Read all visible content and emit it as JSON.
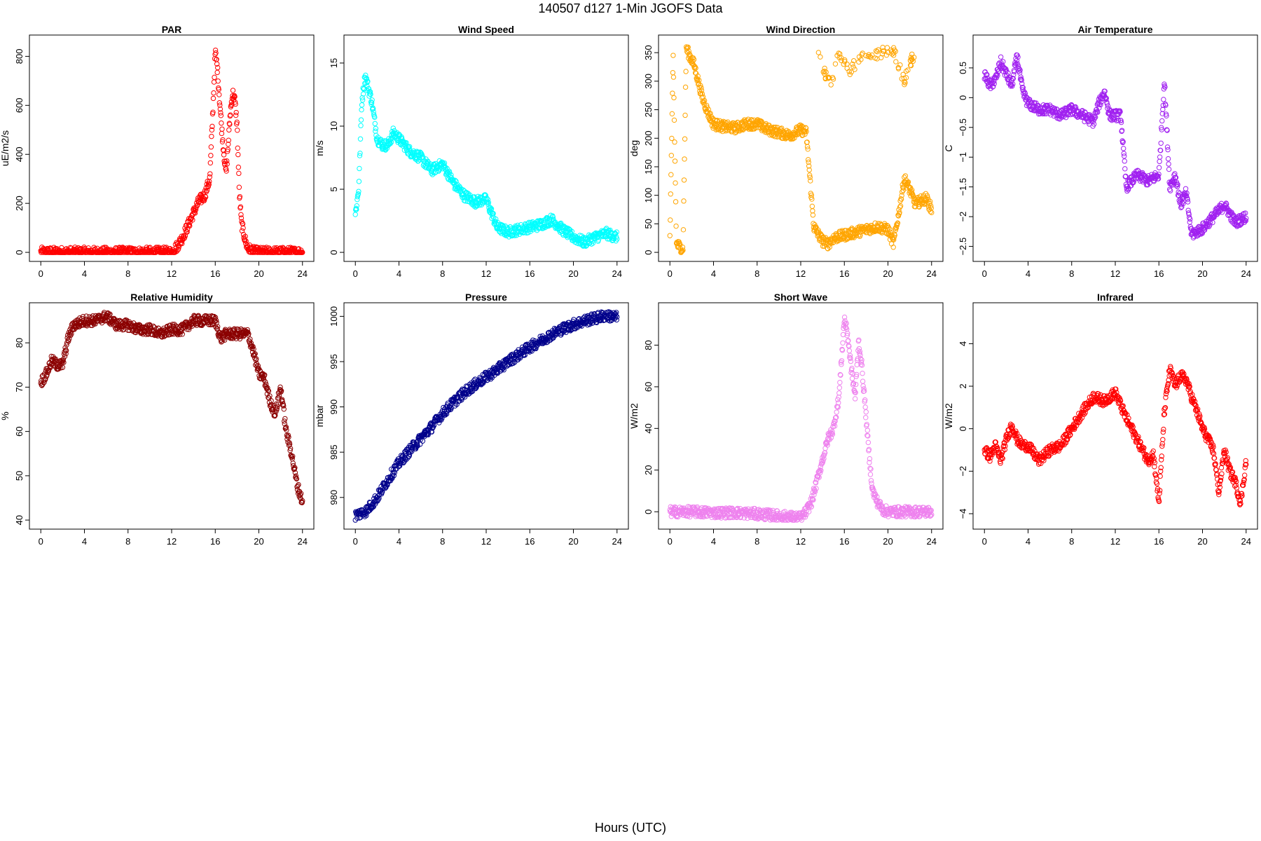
{
  "figure": {
    "title": "140507   d127   1-Min  JGOFS Data",
    "xlabel": "Hours (UTC)"
  },
  "chart_data": [
    {
      "type": "scatter",
      "title": "PAR",
      "ylabel": "uE/m2/s",
      "color": "#ff0000",
      "xlim": [
        0,
        24
      ],
      "ylim": [
        0,
        850
      ],
      "xticks": [
        0,
        4,
        8,
        12,
        16,
        20,
        24
      ],
      "yticks": [
        0,
        200,
        400,
        600,
        800
      ],
      "series": [
        {
          "x": [
            0,
            2,
            4,
            6,
            8,
            10,
            12,
            12.5,
            13,
            13.5,
            14,
            14.5,
            15,
            15.5,
            15.8,
            16,
            16.2,
            16.4,
            16.6,
            16.8,
            17,
            17.2,
            17.4,
            17.6,
            17.8,
            18,
            18.2,
            18.4,
            18.6,
            18.8,
            19,
            19.5,
            20,
            21,
            22,
            23,
            24
          ],
          "y": [
            0,
            0,
            0,
            0,
            0,
            0,
            0,
            25,
            60,
            110,
            160,
            210,
            230,
            300,
            600,
            820,
            750,
            620,
            500,
            400,
            320,
            450,
            580,
            650,
            620,
            520,
            250,
            120,
            80,
            40,
            15,
            3,
            0,
            0,
            0,
            0,
            0
          ]
        }
      ]
    },
    {
      "type": "scatter",
      "title": "Wind Speed",
      "ylabel": "m/s",
      "color": "#00ffff",
      "xlim": [
        0,
        24
      ],
      "ylim": [
        0,
        16.5
      ],
      "xticks": [
        0,
        4,
        8,
        12,
        16,
        20,
        24
      ],
      "yticks": [
        0,
        5,
        10,
        15
      ],
      "series": [
        {
          "x": [
            0,
            0.3,
            0.6,
            0.9,
            1.2,
            1.5,
            2,
            2.5,
            3,
            3.5,
            4,
            5,
            6,
            7,
            8,
            9,
            10,
            11,
            12,
            13,
            14,
            15,
            16,
            17,
            18,
            19,
            20,
            21,
            22,
            23,
            24
          ],
          "y": [
            3,
            5,
            12,
            14,
            13,
            12,
            9,
            8.5,
            8.5,
            9.5,
            9,
            8,
            7.5,
            6.5,
            7,
            5.5,
            4.5,
            4,
            4.2,
            2,
            1.6,
            1.8,
            2,
            2.2,
            2.6,
            1.8,
            1.2,
            0.8,
            1.2,
            1.5,
            1.2
          ]
        }
      ]
    },
    {
      "type": "scatter",
      "title": "Wind Direction",
      "ylabel": "deg",
      "color": "#ffa500",
      "xlim": [
        0,
        24
      ],
      "ylim": [
        0,
        365
      ],
      "xticks": [
        0,
        4,
        8,
        12,
        16,
        20,
        24
      ],
      "yticks": [
        0,
        50,
        100,
        150,
        200,
        250,
        300,
        350
      ],
      "series": [
        {
          "x": [
            0,
            0.3,
            0.6,
            0.9,
            1.2,
            1.5,
            1.8,
            2.2,
            2.6,
            3,
            3.5,
            4,
            5,
            6,
            7,
            8,
            9,
            10,
            11,
            12,
            12.5,
            13.2,
            13.5,
            14,
            14.5,
            15,
            16,
            17,
            18,
            19,
            20,
            20.5,
            21,
            21.5,
            22,
            22.5,
            23,
            23.5,
            24
          ],
          "y": [
            30,
            340,
            15,
            10,
            5,
            358,
            345,
            330,
            300,
            270,
            245,
            225,
            220,
            218,
            225,
            225,
            215,
            210,
            205,
            215,
            210,
            45,
            35,
            20,
            15,
            25,
            30,
            35,
            40,
            45,
            40,
            15,
            70,
            130,
            110,
            85,
            90,
            95,
            75
          ]
        },
        {
          "x": [
            13.5,
            14,
            14.3,
            14.8,
            15.5,
            16.5,
            17.5,
            20.5,
            21.5,
            22.5
          ],
          "y": [
            350,
            330,
            310,
            290,
            350,
            320,
            340,
            355,
            300,
            355
          ]
        }
      ]
    },
    {
      "type": "scatter",
      "title": "Air Temperature",
      "ylabel": "C",
      "color": "#a020f0",
      "xlim": [
        0,
        24
      ],
      "ylim": [
        -2.6,
        0.9
      ],
      "xticks": [
        0,
        4,
        8,
        12,
        16,
        20,
        24
      ],
      "yticks": [
        -2.5,
        -2.0,
        -1.5,
        -1.0,
        -0.5,
        0.0,
        0.5
      ],
      "series": [
        {
          "x": [
            0,
            0.5,
            1,
            1.5,
            2,
            2.5,
            3,
            3.5,
            4,
            5,
            6,
            7,
            8,
            9,
            10,
            10.5,
            11,
            11.5,
            12,
            12.5,
            13,
            13.5,
            14,
            15,
            16,
            16.5,
            17,
            17.5,
            18,
            18.5,
            19,
            20,
            21,
            22,
            23,
            24
          ],
          "y": [
            0.4,
            0.2,
            0.3,
            0.6,
            0.4,
            0.2,
            0.7,
            0.1,
            -0.1,
            -0.2,
            -0.2,
            -0.3,
            -0.2,
            -0.3,
            -0.4,
            -0.1,
            0.1,
            -0.3,
            -0.3,
            -0.3,
            -1.5,
            -1.4,
            -1.3,
            -1.4,
            -1.3,
            0.3,
            -1.5,
            -1.3,
            -1.8,
            -1.6,
            -2.3,
            -2.2,
            -2.0,
            -1.8,
            -2.1,
            -2.0
          ]
        }
      ]
    },
    {
      "type": "scatter",
      "title": "Relative Humidity",
      "ylabel": "%",
      "color": "#8b0000",
      "xlim": [
        0,
        24
      ],
      "ylim": [
        40,
        87
      ],
      "xticks": [
        0,
        4,
        8,
        12,
        16,
        20,
        24
      ],
      "yticks": [
        40,
        50,
        60,
        70,
        80
      ],
      "series": [
        {
          "x": [
            0,
            0.5,
            1,
            1.5,
            2,
            2.5,
            3,
            4,
            5,
            6,
            7,
            8,
            9,
            10,
            11,
            12,
            13,
            14,
            15,
            16,
            16.5,
            17,
            18,
            19,
            19.5,
            20,
            20.5,
            21,
            21.5,
            22,
            22.5,
            23,
            23.5,
            24
          ],
          "y": [
            71,
            73,
            76,
            75,
            75,
            81,
            84,
            85,
            85,
            86,
            84,
            84,
            83,
            83,
            82,
            83,
            83,
            85,
            85,
            85,
            81,
            82,
            82,
            82,
            78,
            73,
            72,
            67,
            64,
            70,
            60,
            55,
            48,
            44
          ]
        }
      ]
    },
    {
      "type": "scatter",
      "title": "Pressure",
      "ylabel": "mbar",
      "color": "#00008b",
      "xlim": [
        0,
        24
      ],
      "ylim": [
        977.5,
        1000.5
      ],
      "xticks": [
        0,
        4,
        8,
        12,
        16,
        20,
        24
      ],
      "yticks": [
        980,
        985,
        990,
        995,
        1000
      ],
      "series": [
        {
          "x": [
            0,
            1,
            2,
            3,
            4,
            5,
            6,
            7,
            8,
            9,
            10,
            11,
            12,
            13,
            14,
            15,
            16,
            17,
            18,
            19,
            20,
            21,
            22,
            23,
            24
          ],
          "y": [
            978,
            978.5,
            980,
            982,
            983.8,
            985.2,
            986.5,
            987.8,
            989.3,
            990.5,
            991.6,
            992.5,
            993.3,
            994.1,
            995,
            995.8,
            996.6,
            997.3,
            998,
            998.6,
            999.1,
            999.5,
            999.8,
            1000.1,
            999.9
          ]
        }
      ]
    },
    {
      "type": "scatter",
      "title": "Short Wave",
      "ylabel": "W/m2",
      "color": "#ee82ee",
      "xlim": [
        0,
        24
      ],
      "ylim": [
        -4,
        96
      ],
      "xticks": [
        0,
        4,
        8,
        12,
        16,
        20,
        24
      ],
      "yticks": [
        0,
        20,
        40,
        60,
        80
      ],
      "series": [
        {
          "x": [
            0,
            2,
            4,
            6,
            8,
            10,
            12,
            12.5,
            13,
            13.5,
            14,
            14.5,
            15,
            15.5,
            16,
            16.3,
            16.6,
            17,
            17.3,
            17.6,
            18,
            18.3,
            18.6,
            19,
            19.5,
            20,
            21,
            22,
            23,
            24
          ],
          "y": [
            0,
            0,
            -0.5,
            -0.5,
            -1,
            -2,
            -3,
            0,
            5,
            15,
            25,
            35,
            40,
            55,
            93,
            85,
            70,
            55,
            82,
            70,
            45,
            25,
            10,
            5,
            1,
            0,
            0,
            0,
            0,
            0
          ]
        }
      ]
    },
    {
      "type": "scatter",
      "title": "Infrared",
      "ylabel": "W/m2",
      "color": "#ff0000",
      "xlim": [
        0,
        24
      ],
      "ylim": [
        -4.3,
        5.5
      ],
      "xticks": [
        0,
        4,
        8,
        12,
        16,
        20,
        24
      ],
      "yticks": [
        -4,
        -2,
        0,
        2,
        4
      ],
      "series": [
        {
          "x": [
            0,
            0.5,
            1,
            1.5,
            2,
            2.5,
            3,
            3.5,
            4,
            5,
            6,
            7,
            8,
            9,
            10,
            11,
            12,
            13,
            14,
            15,
            15.5,
            16,
            16.5,
            17,
            17.5,
            18,
            18.5,
            19,
            19.5,
            20,
            20.5,
            21,
            21.5,
            22,
            22.5,
            23,
            23.5,
            24
          ],
          "y": [
            -1,
            -1.3,
            -0.8,
            -1.5,
            -0.5,
            0.2,
            -0.5,
            -0.8,
            -0.8,
            -1.5,
            -1,
            -0.8,
            0,
            0.8,
            1.5,
            1.3,
            1.7,
            0.5,
            -0.5,
            -1.5,
            -1.2,
            -3.5,
            0.8,
            2.8,
            2,
            2.5,
            2.3,
            1.5,
            0.8,
            0,
            -0.5,
            -1,
            -3,
            -1,
            -2,
            -2.5,
            -3.5,
            -1.5
          ]
        }
      ]
    }
  ]
}
